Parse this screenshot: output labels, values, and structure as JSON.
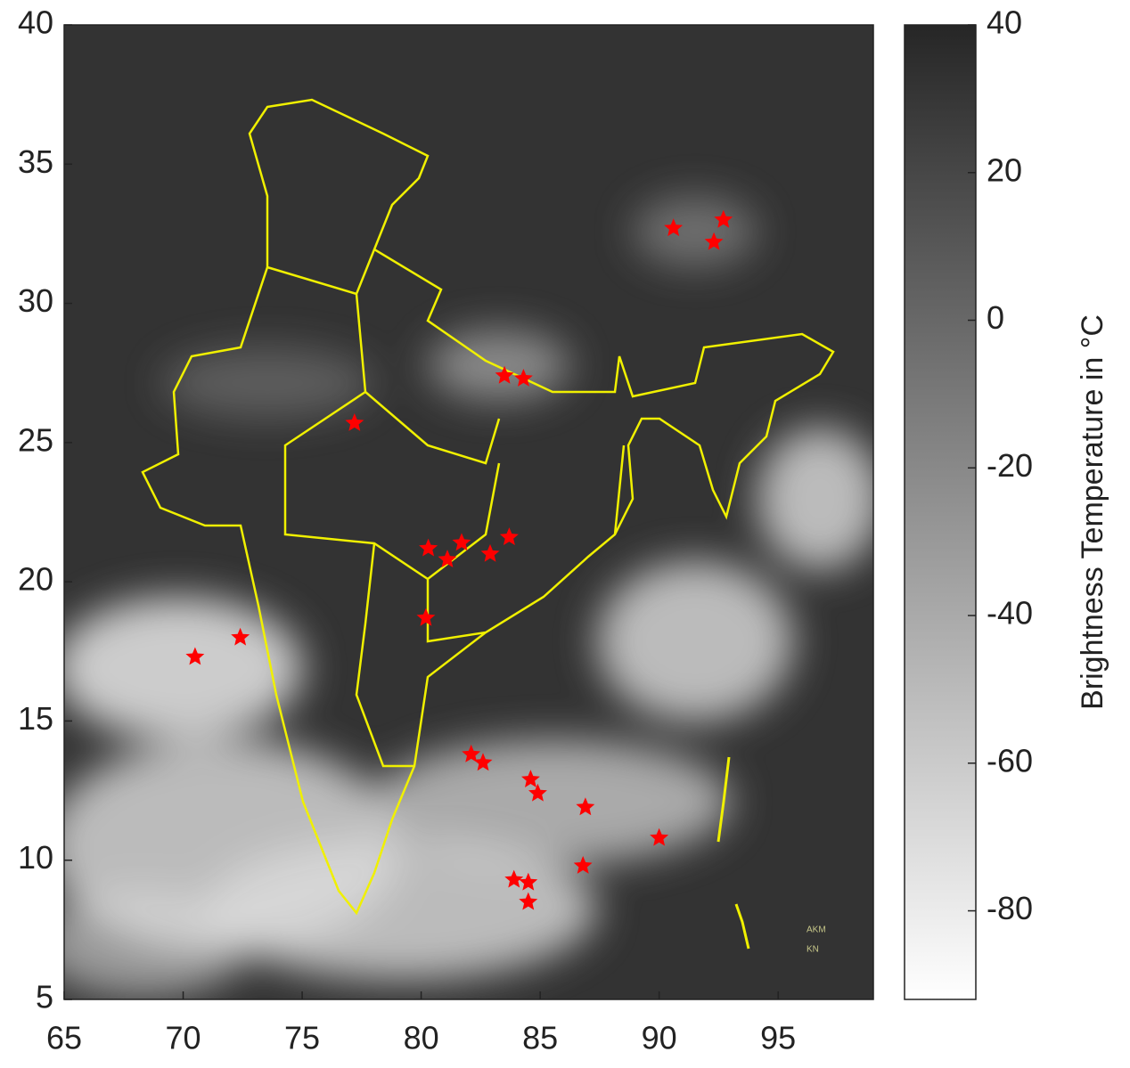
{
  "chart_data": {
    "type": "scatter",
    "xlim": [
      65,
      99
    ],
    "ylim": [
      5,
      40
    ],
    "xticks": [
      65,
      70,
      75,
      80,
      85,
      90,
      95
    ],
    "yticks": [
      5,
      10,
      15,
      20,
      25,
      30,
      35,
      40
    ],
    "series": [
      {
        "color": "#ff0000",
        "x": [
          90.6,
          92.7,
          92.3,
          83.5,
          84.3,
          77.2,
          80.3,
          81.7,
          81.1,
          82.9,
          83.7,
          80.2,
          70.5,
          72.4,
          82.1,
          82.6,
          84.6,
          84.9,
          86.9,
          90.0,
          86.8,
          83.9,
          84.5,
          84.5
        ],
        "values": [
          32.7,
          33.0,
          32.2,
          27.4,
          27.3,
          25.7,
          21.2,
          21.4,
          20.8,
          21.0,
          21.6,
          18.7,
          17.3,
          18.0,
          13.8,
          13.5,
          12.9,
          12.4,
          11.9,
          10.8,
          9.8,
          9.3,
          9.2,
          8.5
        ]
      }
    ],
    "annotations": [
      "AKM",
      "KN"
    ],
    "colorbar": {
      "label": "Brightness Temperature in °C",
      "lim": [
        -92,
        40
      ],
      "ticks": [
        40,
        20,
        0,
        -20,
        -40,
        -60,
        -80
      ],
      "colors": [
        "#ffffff",
        "#262626"
      ]
    }
  }
}
